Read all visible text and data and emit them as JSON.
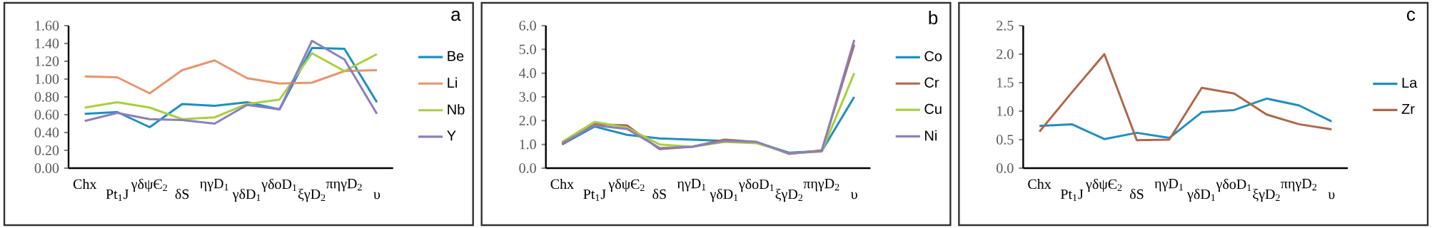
{
  "chart_data": [
    {
      "type": "line",
      "annotations": [
        "a"
      ],
      "categories": [
        "Chx",
        "Pt$_{1}$J",
        "γδψЄ$_{2}$",
        "δS",
        "ηγD$_{1}$",
        "γδD$_{1}$",
        "γδoD$_{1}$",
        "ξγD$_{2}$",
        "πηγD$_{2}$",
        "υ"
      ],
      "ylim": [
        0,
        1.6
      ],
      "yticks": [
        {
          "value": 0,
          "label": "0.00"
        },
        {
          "value": 0.2,
          "label": "0.20"
        },
        {
          "value": 0.4,
          "label": "0.40"
        },
        {
          "value": 0.6,
          "label": "0.60"
        },
        {
          "value": 0.8,
          "label": "0.80"
        },
        {
          "value": 1.0,
          "label": "1.00"
        },
        {
          "value": 1.2,
          "label": "1.20"
        },
        {
          "value": 1.4,
          "label": "1.40"
        },
        {
          "value": 1.6,
          "label": "1.60"
        }
      ],
      "legend": "right",
      "series": [
        {
          "name": "Be",
          "color": "#1f8fc0",
          "values": [
            0.61,
            0.63,
            0.46,
            0.72,
            0.7,
            0.74,
            0.66,
            1.35,
            1.34,
            0.74
          ]
        },
        {
          "name": "Li",
          "color": "#e8946c",
          "values": [
            1.03,
            1.02,
            0.84,
            1.1,
            1.21,
            1.01,
            0.95,
            0.96,
            1.09,
            1.1
          ]
        },
        {
          "name": "Nb",
          "color": "#a8d03c",
          "values": [
            0.68,
            0.74,
            0.68,
            0.55,
            0.57,
            0.72,
            0.77,
            1.29,
            1.09,
            1.28
          ]
        },
        {
          "name": "Y",
          "color": "#8c7fbf",
          "values": [
            0.53,
            0.62,
            0.55,
            0.54,
            0.5,
            0.71,
            0.66,
            1.43,
            1.22,
            0.61
          ]
        }
      ]
    },
    {
      "type": "line",
      "annotations": [
        "b"
      ],
      "categories": [
        "Chx",
        "Pt$_{1}$J",
        "γδψЄ$_{2}$",
        "δS",
        "ηγD$_{1}$",
        "γδD$_{1}$",
        "γδoD$_{1}$",
        "ξγD$_{2}$",
        "πηγD$_{2}$",
        "υ"
      ],
      "ylim": [
        0,
        6
      ],
      "yticks": [
        {
          "value": 0,
          "label": "0.0"
        },
        {
          "value": 1,
          "label": "1.0"
        },
        {
          "value": 2,
          "label": "2.0"
        },
        {
          "value": 3,
          "label": "3.0"
        },
        {
          "value": 4,
          "label": "4.0"
        },
        {
          "value": 5,
          "label": "5.0"
        },
        {
          "value": 6,
          "label": "6.0"
        }
      ],
      "legend": "right",
      "series": [
        {
          "name": "Co",
          "color": "#1f8fc0",
          "values": [
            1.0,
            1.75,
            1.4,
            1.25,
            1.2,
            1.15,
            1.08,
            0.65,
            0.72,
            3.0
          ]
        },
        {
          "name": "Cr",
          "color": "#b0674a",
          "values": [
            1.0,
            1.85,
            1.8,
            0.8,
            0.9,
            1.2,
            1.1,
            0.6,
            0.75,
            5.2
          ]
        },
        {
          "name": "Cu",
          "color": "#a8d03c",
          "values": [
            1.1,
            1.95,
            1.7,
            1.0,
            0.9,
            1.1,
            1.05,
            0.62,
            0.7,
            4.0
          ]
        },
        {
          "name": "Ni",
          "color": "#8c7fbf",
          "values": [
            1.05,
            1.8,
            1.65,
            0.85,
            0.9,
            1.15,
            1.1,
            0.62,
            0.72,
            5.4
          ]
        }
      ]
    },
    {
      "type": "line",
      "annotations": [
        "c"
      ],
      "categories": [
        "Chx",
        "Pt$_{1}$J",
        "γδψЄ$_{2}$",
        "δS",
        "ηγD$_{1}$",
        "γδD$_{1}$",
        "γδoD$_{1}$",
        "ξγD$_{2}$",
        "πηγD$_{2}$",
        "υ"
      ],
      "ylim": [
        0,
        2.5
      ],
      "yticks": [
        {
          "value": 0,
          "label": "0.0"
        },
        {
          "value": 0.5,
          "label": "0.5"
        },
        {
          "value": 1.0,
          "label": "1.0"
        },
        {
          "value": 1.5,
          "label": "1.5"
        },
        {
          "value": 2.0,
          "label": "2.0"
        },
        {
          "value": 2.5,
          "label": "2.5"
        }
      ],
      "legend": "right",
      "series": [
        {
          "name": "La",
          "color": "#1f8fc0",
          "values": [
            0.74,
            0.77,
            0.51,
            0.62,
            0.53,
            0.98,
            1.02,
            1.22,
            1.1,
            0.82
          ]
        },
        {
          "name": "Zr",
          "color": "#b0674a",
          "values": [
            0.64,
            1.33,
            2.0,
            0.49,
            0.5,
            1.41,
            1.31,
            0.94,
            0.77,
            0.68
          ]
        }
      ]
    }
  ]
}
